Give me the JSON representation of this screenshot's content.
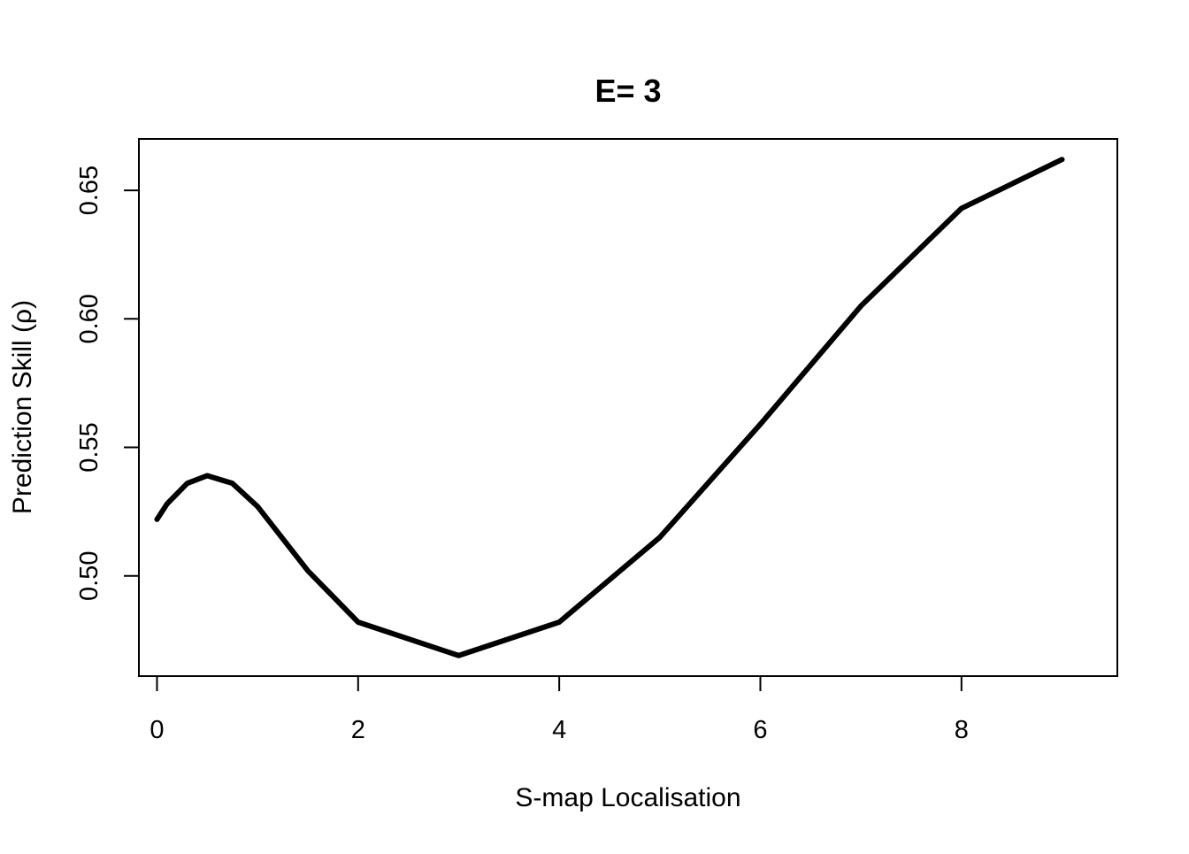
{
  "chart_data": {
    "type": "line",
    "title": "E= 3",
    "xlabel": "S-map Localisation",
    "ylabel": "Prediction Skill (ρ)",
    "xlim": [
      -0.18,
      9.55
    ],
    "ylim": [
      0.461,
      0.67
    ],
    "x_ticks": [
      0,
      2,
      4,
      6,
      8
    ],
    "y_ticks": [
      0.5,
      0.55,
      0.6,
      0.65
    ],
    "x_tick_labels": [
      "0",
      "2",
      "4",
      "6",
      "8"
    ],
    "y_tick_labels": [
      "0.50",
      "0.55",
      "0.60",
      "0.65"
    ],
    "grid": false,
    "legend": "none",
    "series": [
      {
        "color": "#000000",
        "x": [
          0,
          0.1,
          0.3,
          0.5,
          0.75,
          1,
          1.5,
          2,
          3,
          4,
          5,
          6,
          7,
          8,
          9
        ],
        "y": [
          0.522,
          0.528,
          0.536,
          0.539,
          0.536,
          0.527,
          0.502,
          0.482,
          0.469,
          0.482,
          0.515,
          0.559,
          0.605,
          0.643,
          0.662
        ]
      }
    ]
  }
}
